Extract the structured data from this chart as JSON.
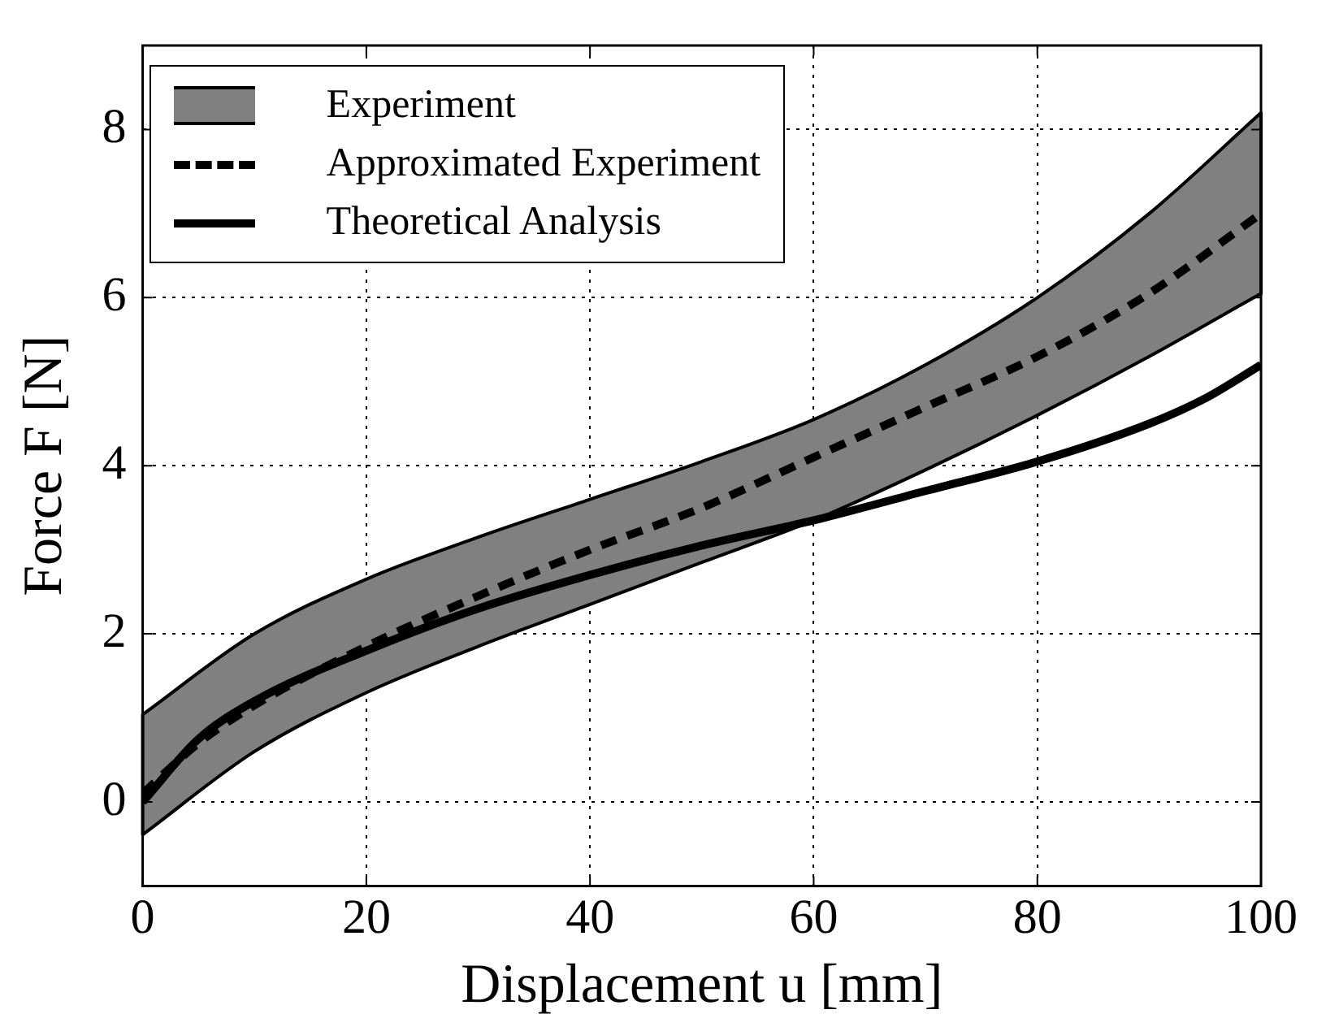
{
  "chart_data": {
    "type": "line",
    "xlabel": "Displacement u [mm]",
    "ylabel": "Force F [N]",
    "xlim": [
      0,
      100
    ],
    "xticks": [
      0,
      20,
      40,
      60,
      80,
      100
    ],
    "ylim": [
      -1,
      9
    ],
    "yticks": [
      0,
      2,
      4,
      6,
      8
    ],
    "grid": true,
    "legend": "top left",
    "series": [
      {
        "name": "Experiment",
        "type": "area",
        "color": "#808080",
        "x": [
          0,
          10,
          20,
          30,
          40,
          50,
          60,
          70,
          80,
          90,
          100
        ],
        "values": [
          null,
          null,
          null,
          null,
          null,
          null,
          null,
          null,
          null,
          null,
          null
        ],
        "lower": [
          -0.39,
          0.6,
          1.3,
          1.85,
          2.35,
          2.85,
          3.35,
          3.95,
          4.6,
          5.3,
          6.05
        ],
        "upper": [
          1.04,
          2.0,
          2.65,
          3.15,
          3.6,
          4.05,
          4.55,
          5.2,
          6.0,
          7.0,
          8.2
        ]
      },
      {
        "name": "Approximated Experiment",
        "type": "line",
        "line_style": "dashed",
        "color": "#000000",
        "x": [
          0,
          5,
          10,
          20,
          30,
          40,
          50,
          60,
          70,
          80,
          90,
          100
        ],
        "values": [
          0.1,
          0.7,
          1.15,
          1.85,
          2.45,
          3.0,
          3.5,
          4.1,
          4.7,
          5.3,
          6.05,
          7.0
        ]
      },
      {
        "name": "Theoretical Analysis",
        "type": "line",
        "line_style": "solid",
        "color": "#000000",
        "x": [
          0,
          5,
          10,
          20,
          30,
          40,
          50,
          60,
          70,
          80,
          90,
          95,
          100
        ],
        "values": [
          0.0,
          0.75,
          1.2,
          1.8,
          2.3,
          2.7,
          3.05,
          3.35,
          3.7,
          4.05,
          4.5,
          4.8,
          5.2
        ]
      }
    ]
  }
}
